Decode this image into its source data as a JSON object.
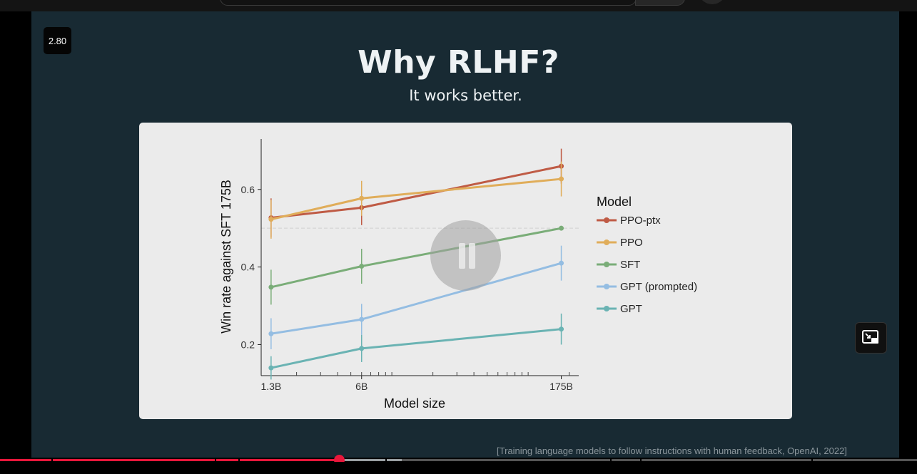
{
  "player": {
    "speed_badge": "2.80",
    "progress": {
      "played_fraction": 0.37,
      "buffered_fraction": 0.438,
      "chapter_markers": [
        0.056,
        0.234,
        0.26,
        0.42,
        0.665,
        0.698,
        0.885
      ]
    }
  },
  "slide": {
    "title": "Why RLHF?",
    "subtitle": "It works better.",
    "citation": "[Training language models to follow instructions with human feedback, OpenAI, 2022]"
  },
  "colors": {
    "slide_bg": "#182a33",
    "panel_bg": "#ebebeb",
    "progress_red": "#e8173b"
  },
  "chart_data": {
    "type": "line",
    "xlabel": "Model size",
    "ylabel": "Win rate against SFT 175B",
    "x_scale": "log",
    "categories": [
      "1.3B",
      "6B",
      "175B"
    ],
    "x": [
      1.3,
      6,
      175
    ],
    "xlim": [
      1.1,
      235
    ],
    "ylim": [
      0.12,
      0.73
    ],
    "yticks": [
      0.2,
      0.4,
      0.6
    ],
    "reference_line": 0.5,
    "legend_title": "Model",
    "legend_position": "right",
    "series": [
      {
        "name": "PPO-ptx",
        "color": "#bf5b45",
        "values": [
          0.527,
          0.553,
          0.66
        ],
        "err": [
          0.05,
          0.045,
          0.045
        ]
      },
      {
        "name": "PPO",
        "color": "#e0ad5a",
        "values": [
          0.523,
          0.577,
          0.627
        ],
        "err": [
          0.05,
          0.045,
          0.045
        ]
      },
      {
        "name": "SFT",
        "color": "#7aad78",
        "values": [
          0.348,
          0.402,
          0.5
        ],
        "err": [
          0.045,
          0.045,
          0.0
        ]
      },
      {
        "name": "GPT (prompted)",
        "color": "#94bde2",
        "values": [
          0.228,
          0.265,
          0.41
        ],
        "err": [
          0.04,
          0.04,
          0.045
        ]
      },
      {
        "name": "GPT",
        "color": "#6ab3b3",
        "values": [
          0.14,
          0.19,
          0.24
        ],
        "err": [
          0.03,
          0.035,
          0.04
        ]
      }
    ]
  }
}
